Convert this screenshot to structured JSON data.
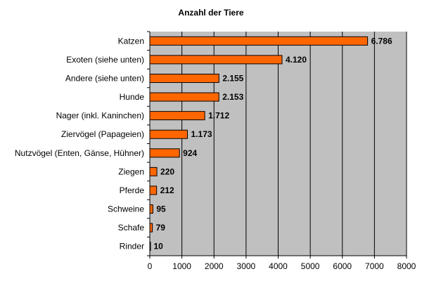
{
  "chart_data": {
    "type": "bar",
    "orientation": "horizontal",
    "title": "Anzahl der Tiere",
    "categories": [
      "Katzen",
      "Exoten (siehe unten)",
      "Andere (siehe unten)",
      "Hunde",
      "Nager (inkl. Kaninchen)",
      "Ziervögel (Papageien)",
      "Nutzvögel (Enten, Gänse, Hühner)",
      "Ziegen",
      "Pferde",
      "Schweine",
      "Schafe",
      "Rinder"
    ],
    "values": [
      6786,
      4120,
      2155,
      2153,
      1712,
      1173,
      924,
      220,
      212,
      95,
      79,
      10
    ],
    "value_labels": [
      "6.786",
      "4.120",
      "2.155",
      "2.153",
      "1.712",
      "1.173",
      "924",
      "220",
      "212",
      "95",
      "79",
      "10"
    ],
    "xlim": [
      0,
      8000
    ],
    "xticks": [
      0,
      1000,
      2000,
      3000,
      4000,
      5000,
      6000,
      7000,
      8000
    ],
    "xtick_labels": [
      "0",
      "1000",
      "2000",
      "3000",
      "4000",
      "5000",
      "6000",
      "7000",
      "8000"
    ],
    "grid": true,
    "legend": "none",
    "colors": {
      "bar_fill": "#FF6600",
      "bar_stroke": "#000000",
      "plot_background": "#C0C0C0",
      "gridline": "#000000"
    }
  }
}
